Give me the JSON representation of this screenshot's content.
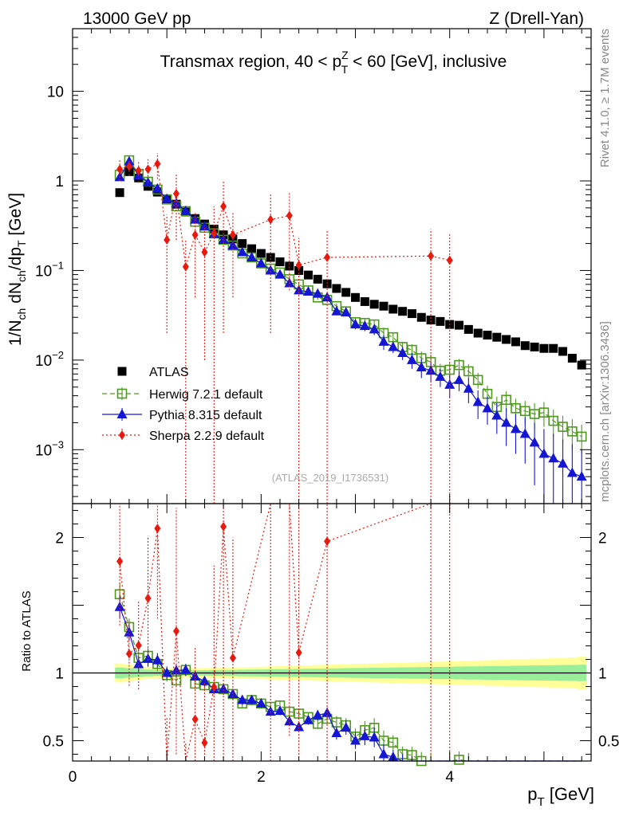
{
  "header": {
    "left": "13000 GeV pp",
    "right": "Z (Drell-Yan)"
  },
  "side_labels": {
    "rivet": "Rivet 4.1.0, ≥ 1.7M events",
    "mcplots": "mcplots.cern.ch [arXiv:1306.3436]"
  },
  "chart_data": {
    "type": "scatter",
    "title_parts": {
      "pre": "Transmax region, 40 < p",
      "sup": "Z",
      "sub": "T",
      "post": " < 60 [GeV], inclusive"
    },
    "watermark": "(ATLAS_2019_I1736531)",
    "xlabel": {
      "main": "p",
      "sub": "T",
      "unit": " [GeV]"
    },
    "ylabel": {
      "text": "1/N_ch dN_ch/dp_T [GeV]"
    },
    "ratio_ylabel": "Ratio to ATLAS",
    "xlim": [
      0,
      5.5
    ],
    "ylim": [
      0.00025,
      50
    ],
    "ratio_ylim": [
      0.35,
      2.25
    ],
    "x_ticks": [
      0,
      2,
      4
    ],
    "y_major_ticks": [
      {
        "value": 10,
        "base": "10",
        "exp": ""
      },
      {
        "value": 1,
        "base": "1",
        "exp": ""
      },
      {
        "value": 0.1,
        "base": "10",
        "exp": "−1"
      },
      {
        "value": 0.01,
        "base": "10",
        "exp": "−2"
      },
      {
        "value": 0.001,
        "base": "10",
        "exp": "−3"
      }
    ],
    "ratio_ticks": [
      {
        "value": 2,
        "label": "2"
      },
      {
        "value": 1,
        "label": "1"
      },
      {
        "value": 0.5,
        "label": "0.5"
      }
    ],
    "legend_position": "lower-left",
    "x": [
      0.5,
      0.6,
      0.7,
      0.8,
      0.9,
      1.0,
      1.1,
      1.2,
      1.3,
      1.4,
      1.5,
      1.6,
      1.7,
      1.8,
      1.9,
      2.0,
      2.1,
      2.2,
      2.3,
      2.4,
      2.5,
      2.6,
      2.7,
      2.8,
      2.9,
      3.0,
      3.1,
      3.2,
      3.3,
      3.4,
      3.5,
      3.6,
      3.7,
      3.8,
      3.9,
      4.0,
      4.1,
      4.2,
      4.3,
      4.4,
      4.5,
      4.6,
      4.7,
      4.8,
      4.9,
      5.0,
      5.1,
      5.2,
      5.3,
      5.4
    ],
    "band": {
      "name": "ATLAS uncertainty",
      "green_halfwidth": [
        0.04,
        0.035,
        0.03,
        0.025,
        0.022,
        0.02,
        0.02,
        0.02,
        0.02,
        0.02,
        0.021,
        0.022,
        0.023,
        0.024,
        0.025,
        0.026,
        0.027,
        0.028,
        0.029,
        0.03,
        0.031,
        0.032,
        0.033,
        0.034,
        0.035,
        0.036,
        0.037,
        0.038,
        0.039,
        0.04,
        0.041,
        0.042,
        0.043,
        0.044,
        0.045,
        0.046,
        0.047,
        0.048,
        0.049,
        0.05,
        0.051,
        0.052,
        0.053,
        0.054,
        0.055,
        0.056,
        0.057,
        0.058,
        0.059,
        0.06
      ],
      "yellow_halfwidth": [
        0.07,
        0.06,
        0.05,
        0.045,
        0.04,
        0.035,
        0.035,
        0.035,
        0.035,
        0.036,
        0.037,
        0.038,
        0.04,
        0.042,
        0.044,
        0.046,
        0.048,
        0.05,
        0.052,
        0.054,
        0.056,
        0.058,
        0.06,
        0.062,
        0.064,
        0.066,
        0.068,
        0.07,
        0.072,
        0.074,
        0.076,
        0.078,
        0.08,
        0.082,
        0.084,
        0.086,
        0.088,
        0.09,
        0.092,
        0.094,
        0.096,
        0.098,
        0.1,
        0.102,
        0.104,
        0.106,
        0.108,
        0.11,
        0.115,
        0.12
      ]
    },
    "series": [
      {
        "name": "ATLAS",
        "marker": "square-filled",
        "color": "#000000",
        "line": "none",
        "values": [
          0.74,
          1.27,
          1.08,
          0.87,
          0.75,
          0.63,
          0.55,
          0.45,
          0.38,
          0.33,
          0.29,
          0.25,
          0.225,
          0.2,
          0.175,
          0.155,
          0.14,
          0.125,
          0.112,
          0.1,
          0.089,
          0.08,
          0.071,
          0.063,
          0.057,
          0.05,
          0.045,
          0.042,
          0.04,
          0.037,
          0.035,
          0.033,
          0.03,
          0.028,
          0.027,
          0.025,
          0.0245,
          0.022,
          0.02,
          0.019,
          0.018,
          0.017,
          0.016,
          0.0145,
          0.014,
          0.0135,
          0.0135,
          0.0125,
          0.0105,
          0.0088
        ],
        "errors": []
      },
      {
        "name": "Herwig 7.2.1 default",
        "marker": "square-open",
        "color": "#4d9a1d",
        "line": "dashed",
        "values": [
          1.17,
          1.7,
          1.2,
          0.98,
          0.8,
          0.62,
          0.52,
          0.46,
          0.35,
          0.3,
          0.26,
          0.22,
          0.19,
          0.155,
          0.14,
          0.12,
          0.105,
          0.095,
          0.08,
          0.07,
          0.06,
          0.05,
          0.047,
          0.04,
          0.035,
          0.0265,
          0.026,
          0.025,
          0.02,
          0.018,
          0.014,
          0.013,
          0.0105,
          0.0095,
          0.0076,
          0.0078,
          0.0088,
          0.0075,
          0.006,
          0.0042,
          0.003,
          0.0036,
          0.0029,
          0.0027,
          0.0025,
          0.0026,
          0.0021,
          0.0018,
          0.0016,
          0.0014
        ],
        "errors": [
          0.06,
          0.08,
          0.06,
          0.05,
          0.04,
          0.03,
          0.025,
          0.02,
          0.015,
          0.012,
          0.011,
          0.01,
          0.008,
          0.007,
          0.006,
          0.005,
          0.005,
          0.004,
          0.004,
          0.003,
          0.003,
          0.003,
          0.003,
          0.003,
          0.003,
          0.003,
          0.003,
          0.003,
          0.003,
          0.002,
          0.002,
          0.002,
          0.002,
          0.002,
          0.0015,
          0.0015,
          0.0015,
          0.0015,
          0.0012,
          0.001,
          0.0009,
          0.0009,
          0.0008,
          0.0008,
          0.0008,
          0.0008,
          0.0007,
          0.0006,
          0.0006,
          0.0005
        ]
      },
      {
        "name": "Pythia 8.315 default",
        "marker": "triangle-filled",
        "color": "#1515d4",
        "line": "solid",
        "values": [
          1.1,
          1.65,
          1.15,
          0.96,
          0.82,
          0.63,
          0.56,
          0.46,
          0.37,
          0.31,
          0.255,
          0.22,
          0.19,
          0.16,
          0.14,
          0.12,
          0.1,
          0.09,
          0.072,
          0.06,
          0.058,
          0.055,
          0.05,
          0.035,
          0.034,
          0.025,
          0.024,
          0.022,
          0.016,
          0.014,
          0.012,
          0.01,
          0.0083,
          0.0076,
          0.0065,
          0.0053,
          0.006,
          0.0048,
          0.0034,
          0.0029,
          0.0024,
          0.002,
          0.0017,
          0.0015,
          0.0012,
          0.0009,
          0.0008,
          0.0007,
          0.00055,
          0.0005
        ],
        "errors": [
          0.06,
          0.08,
          0.06,
          0.05,
          0.04,
          0.03,
          0.025,
          0.02,
          0.015,
          0.012,
          0.011,
          0.01,
          0.008,
          0.007,
          0.006,
          0.005,
          0.005,
          0.004,
          0.004,
          0.003,
          0.003,
          0.003,
          0.003,
          0.003,
          0.003,
          0.003,
          0.003,
          0.003,
          0.003,
          0.002,
          0.002,
          0.002,
          0.002,
          0.002,
          0.0015,
          0.0015,
          0.0015,
          0.0015,
          0.0012,
          0.001,
          0.0009,
          0.0009,
          0.0008,
          0.0008,
          0.0008,
          0.0008,
          0.0007,
          0.0006,
          0.0006,
          0.0005
        ]
      },
      {
        "name": "Sherpa 2.2.9 default",
        "marker": "diamond-filled",
        "color": "#e8190f",
        "line": "dotted",
        "values": [
          1.35,
          1.45,
          1.3,
          1.35,
          1.55,
          0.22,
          0.72,
          0.11,
          0.25,
          0.16,
          0.26,
          0.52,
          0.25,
          0.0,
          0.0,
          0.0,
          0.37,
          0.0,
          0.41,
          0.115,
          0.0,
          0.0,
          0.14,
          0.0,
          0.0,
          0.0,
          0.0,
          0.0,
          0.0,
          0.0,
          0.0,
          0.0,
          0.0,
          0.145,
          0.0,
          0.13,
          0.0,
          0.0,
          0.0,
          0.0,
          0.0,
          0.0,
          0.0,
          0.0,
          0.0,
          0.0,
          0.0,
          0.0,
          0.0,
          0.0
        ],
        "errors": [
          0.35,
          0.3,
          0.35,
          0.4,
          0.5,
          0.2,
          0.5,
          0.11,
          0.2,
          0.15,
          0.26,
          0.5,
          0.2,
          0.0,
          0.0,
          0.0,
          0.35,
          0.0,
          0.35,
          0.115,
          0.0,
          0.0,
          0.14,
          0.0,
          0.0,
          0.0,
          0.0,
          0.0,
          0.0,
          0.0,
          0.0,
          0.0,
          0.0,
          0.145,
          0.0,
          0.13,
          0.0,
          0.0,
          0.0,
          0.0,
          0.0,
          0.0,
          0.0,
          0.0,
          0.0,
          0.0,
          0.0,
          0.0,
          0.0,
          0.0
        ]
      }
    ]
  }
}
